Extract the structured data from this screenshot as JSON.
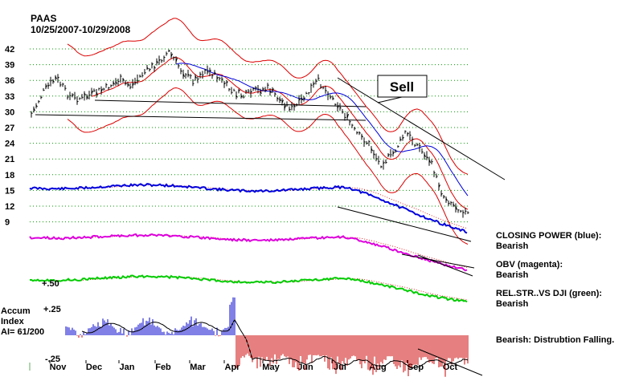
{
  "header": {
    "ticker": "PAAS",
    "date_range": "10/25/2007-10/29/2008"
  },
  "accum": {
    "label_line1": "Accum",
    "label_line2": "Index",
    "label_line3": "AI= 61/200",
    "upper_level": "+.25",
    "lower_level": "-.25"
  },
  "rel_str_level": "+.50",
  "sell_label": "Sell",
  "indicators": {
    "closing_power_title": "CLOSING POWER (blue):",
    "closing_power_status": "Bearish",
    "obv_title": "OBV (magenta):",
    "obv_status": "Bearish",
    "relstr_title": "REL.STR..VS DJI (green):",
    "relstr_status": "Bearish",
    "accum_status": "Bearish: Distrubtion Falling."
  },
  "colors": {
    "price": "#000000",
    "bands": "#dd0000",
    "moving_average": "#0000dd",
    "closing_power": "#0000dd",
    "obv": "#dd00dd",
    "rel_str": "#00cc00",
    "accum_positive": "#0000cc",
    "accum_negative": "#cc0000",
    "grid": "#009900"
  },
  "chart_data": {
    "type": "line",
    "title": "PAAS",
    "subtitle": "10/25/2007-10/29/2008",
    "y_ticks": [
      42,
      39,
      36,
      33,
      30,
      27,
      24,
      21,
      18,
      15,
      12,
      9
    ],
    "ylim": [
      9,
      42
    ],
    "x_ticks": [
      "Nov",
      "Dec",
      "Jan",
      "Feb",
      "Mar",
      "Apr",
      "May",
      "Jun",
      "Jul",
      "Aug",
      "Sep",
      "Oct"
    ],
    "grid": true,
    "price_series": {
      "name": "PAAS",
      "points": [
        [
          "Oct",
          29.5
        ],
        [
          "Nov",
          34.0
        ],
        [
          "Nov",
          36.5
        ],
        [
          "Nov",
          33.0
        ],
        [
          "Dec",
          32.5
        ],
        [
          "Dec",
          33.5
        ],
        [
          "Jan",
          34.5
        ],
        [
          "Jan",
          36.0
        ],
        [
          "Feb",
          35.0
        ],
        [
          "Feb",
          37.5
        ],
        [
          "Feb",
          39.0
        ],
        [
          "Mar",
          41.5
        ],
        [
          "Mar",
          38.0
        ],
        [
          "Mar",
          36.0
        ],
        [
          "Apr",
          38.0
        ],
        [
          "Apr",
          36.5
        ],
        [
          "Apr",
          34.0
        ],
        [
          "May",
          33.0
        ],
        [
          "May",
          34.0
        ],
        [
          "May",
          34.5
        ],
        [
          "Jun",
          32.0
        ],
        [
          "Jun",
          30.5
        ],
        [
          "Jun",
          33.0
        ],
        [
          "Jul",
          36.0
        ],
        [
          "Jul",
          33.0
        ],
        [
          "Jul",
          30.0
        ],
        [
          "Aug",
          26.0
        ],
        [
          "Aug",
          24.0
        ],
        [
          "Aug",
          20.0
        ],
        [
          "Sep",
          22.0
        ],
        [
          "Sep",
          26.0
        ],
        [
          "Sep",
          23.5
        ],
        [
          "Oct",
          20.5
        ],
        [
          "Oct",
          14.0
        ],
        [
          "Oct",
          12.0
        ],
        [
          "Oct",
          10.5
        ]
      ]
    },
    "series": [
      {
        "name": "CLOSING POWER (blue)"
      },
      {
        "name": "OBV (magenta)"
      },
      {
        "name": "REL.STR..VS DJI (green)"
      }
    ],
    "annotations": [
      "Sell"
    ]
  }
}
